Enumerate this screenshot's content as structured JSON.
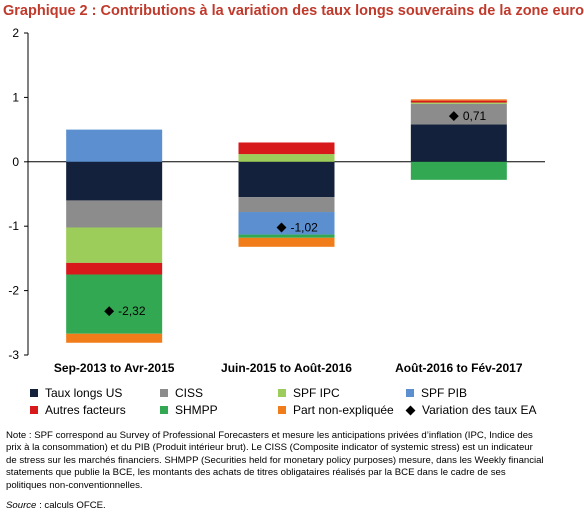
{
  "title": "Graphique 2 : Contributions à la variation des taux longs souverains de la zone euro",
  "note": "Note : SPF correspond au Survey of Professional Forecasters et mesure les anticipations privées d’inflation (IPC, Indice des prix à la consommation) et du PIB (Produit intérieur brut). Le CISS (Composite indicator of systemic stress) est un indicateur de stress sur les marchés financiers. SHMPP (Securities held for monetary policy purposes) mesure, dans les Weekly financial statements que publie la BCE, les montants des achats de titres obligataires réalisés par la BCE dans le cadre de ses politiques non-conventionnelles.",
  "source_label": "Source",
  "source_text": " : calculs OFCE.",
  "chart_data": {
    "type": "bar",
    "stacked": true,
    "categories": [
      "Sep-2013 to Avr-2015",
      "Juin-2015 to Août-2016",
      "Août-2016 to Fév-2017"
    ],
    "ylim": [
      -3,
      2
    ],
    "yticks": [
      "2",
      "1",
      "0",
      "-1",
      "-2",
      "-3"
    ],
    "ytick_values": [
      2,
      1,
      0,
      -1,
      -2,
      -3
    ],
    "grid": false,
    "legend_position": "bottom",
    "series": [
      {
        "name": "Taux longs US",
        "color": "#14213d",
        "values": [
          -0.6,
          -0.55,
          0.58
        ]
      },
      {
        "name": "CISS",
        "color": "#8c8c8c",
        "values": [
          -0.42,
          -0.23,
          0.32
        ]
      },
      {
        "name": "SPF IPC",
        "color": "#9ccc5a",
        "values": [
          -0.55,
          0.12,
          0.02
        ]
      },
      {
        "name": "SPF PIB",
        "color": "#5b8fcf",
        "values": [
          0.5,
          -0.35,
          0.0
        ]
      },
      {
        "name": "Autres facteurs",
        "color": "#d7191c",
        "values": [
          -0.18,
          0.18,
          0.03
        ]
      },
      {
        "name": "SHMPP",
        "color": "#33a853",
        "values": [
          -0.92,
          -0.05,
          -0.28
        ]
      },
      {
        "name": "Part non-expliquée",
        "color": "#f07d1a",
        "values": [
          -0.14,
          -0.14,
          0.02
        ]
      }
    ],
    "total_series": {
      "name": "Variation des taux EA",
      "values": [
        -2.32,
        -1.02,
        0.71
      ],
      "labels": [
        "-2,32",
        "-1,02",
        "0,71"
      ]
    }
  }
}
